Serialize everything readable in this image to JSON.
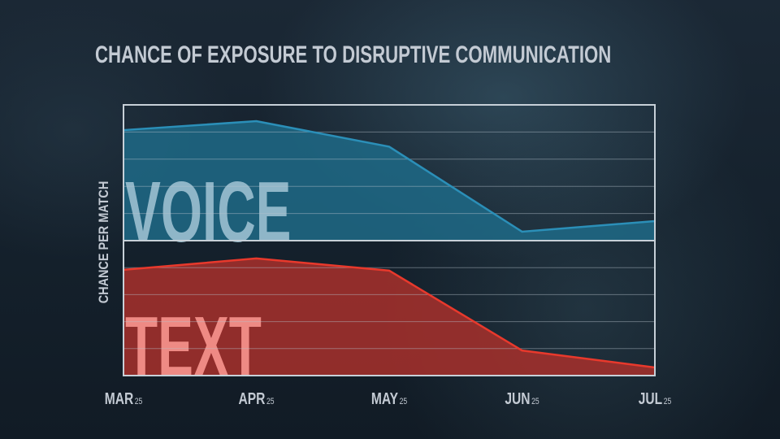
{
  "chart_data": {
    "type": "area",
    "title": "CHANCE OF EXPOSURE TO DISRUPTIVE COMMUNICATION",
    "ylabel": "CHANCE PER MATCH",
    "xlabel": "",
    "categories": [
      {
        "month": "MAR",
        "year": "25"
      },
      {
        "month": "APR",
        "year": "25"
      },
      {
        "month": "MAY",
        "year": "25"
      },
      {
        "month": "JUN",
        "year": "25"
      },
      {
        "month": "JUL",
        "year": "25"
      }
    ],
    "ylim": [
      0,
      5
    ],
    "grid": true,
    "series": [
      {
        "name": "VOICE",
        "color": "#2b8fb8",
        "fill": "#1f6a87",
        "label_color": "#8fb6c8",
        "values": [
          4.07,
          4.4,
          3.46,
          0.33,
          0.72
        ]
      },
      {
        "name": "TEXT",
        "color": "#e8392c",
        "fill": "#a8302b",
        "label_color": "#ee8a84",
        "values": [
          3.92,
          4.34,
          3.89,
          0.93,
          0.3
        ]
      }
    ]
  }
}
